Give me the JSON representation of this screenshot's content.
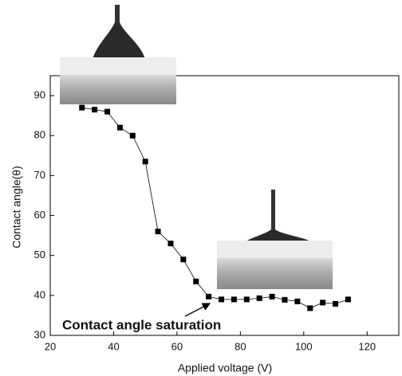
{
  "chart_data": {
    "type": "line",
    "x_label": "Applied voltage (V)",
    "y_label": "Contact angle(θ)",
    "annotation": "Contact angle saturation",
    "x": [
      30,
      34,
      38,
      42,
      46,
      50,
      54,
      58,
      62,
      66,
      70,
      74,
      78,
      82,
      86,
      90,
      94,
      98,
      102,
      106,
      110,
      114
    ],
    "series": [
      {
        "color": "#000000",
        "values": [
          87,
          86.5,
          86,
          82,
          80,
          73.5,
          56,
          53,
          49,
          43.5,
          39.7,
          39,
          39,
          39,
          39.3,
          39.7,
          38.9,
          38.5,
          36.8,
          38.2,
          37.9,
          39
        ]
      }
    ],
    "xlim": [
      20,
      130
    ],
    "xticks": [
      20,
      40,
      60,
      80,
      100,
      120
    ],
    "ylim": [
      30,
      95
    ],
    "yticks": [
      30,
      40,
      50,
      60,
      70,
      80,
      90
    ]
  }
}
